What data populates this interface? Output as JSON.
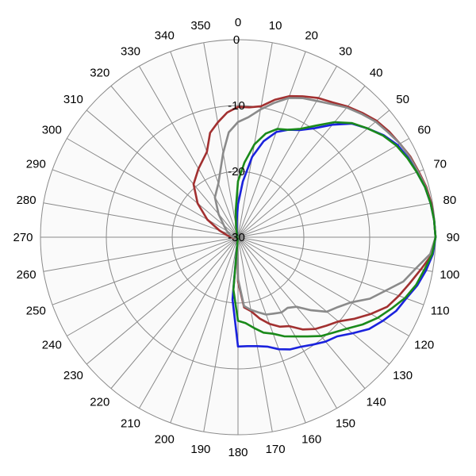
{
  "chart_data": {
    "type": "polar-line",
    "title": "",
    "angle_unit": "degrees",
    "angle_ticks": [
      "0",
      "10",
      "20",
      "30",
      "40",
      "50",
      "60",
      "70",
      "80",
      "90",
      "100",
      "110",
      "120",
      "130",
      "140",
      "150",
      "160",
      "170",
      "180",
      "190",
      "200",
      "210",
      "220",
      "230",
      "240",
      "250",
      "260",
      "270",
      "280",
      "290",
      "300",
      "310",
      "320",
      "330",
      "340",
      "350"
    ],
    "radial_ticks": [
      "0",
      "-10",
      "-20",
      "-30"
    ],
    "radial_range": [
      -30,
      0
    ],
    "grid": true,
    "colors": {
      "background": "#fafafa",
      "grid": "#8a8a8a"
    },
    "series": [
      {
        "color": "#a23030",
        "angles": [
          0,
          5,
          10,
          15,
          20,
          25,
          30,
          35,
          40,
          45,
          50,
          55,
          60,
          65,
          70,
          75,
          80,
          85,
          90,
          95,
          100,
          105,
          110,
          115,
          120,
          125,
          130,
          135,
          140,
          145,
          150,
          155,
          160,
          165,
          170,
          175,
          180,
          185,
          190,
          195,
          200,
          205,
          210,
          220,
          230,
          240,
          250,
          260,
          270,
          280,
          290,
          300,
          310,
          320,
          330,
          340,
          345,
          350,
          355
        ],
        "values": [
          -10.2,
          -10.2,
          -9.8,
          -8.4,
          -7.2,
          -6.4,
          -5.6,
          -5.0,
          -4.1,
          -3.3,
          -2.5,
          -2.0,
          -1.6,
          -1.1,
          -0.8,
          -0.4,
          -0.2,
          -0.1,
          0.0,
          -0.4,
          -1.8,
          -3.0,
          -4.0,
          -5.0,
          -6.7,
          -8.4,
          -10.1,
          -11.0,
          -11.8,
          -12.9,
          -14.4,
          -15.0,
          -16.0,
          -17.2,
          -18.6,
          -19.3,
          -23.3,
          -28.5,
          -29.3,
          -29.5,
          -29.6,
          -29.7,
          -29.8,
          -29.8,
          -29.8,
          -29.8,
          -29.8,
          -29.4,
          -29.0,
          -28.3,
          -27.0,
          -24.6,
          -22.0,
          -19.5,
          -18.0,
          -16.2,
          -13.6,
          -12.3,
          -11.0
        ]
      },
      {
        "color": "#8a8a8a",
        "angles": [
          0,
          5,
          10,
          15,
          20,
          25,
          30,
          35,
          40,
          45,
          50,
          55,
          60,
          65,
          70,
          75,
          80,
          85,
          90,
          95,
          100,
          105,
          110,
          115,
          120,
          125,
          130,
          135,
          140,
          145,
          150,
          155,
          160,
          165,
          170,
          175,
          180,
          185,
          190,
          195,
          200,
          210,
          220,
          230,
          240,
          250,
          260,
          270,
          280,
          290,
          300,
          310,
          320,
          330,
          340,
          345,
          350,
          355
        ],
        "values": [
          -12.5,
          -11.7,
          -10.3,
          -8.9,
          -7.5,
          -6.7,
          -6.1,
          -5.3,
          -4.3,
          -3.5,
          -2.7,
          -2.2,
          -1.6,
          -1.2,
          -0.9,
          -0.5,
          -0.3,
          -0.1,
          0.0,
          -0.7,
          -2.6,
          -4.0,
          -6.2,
          -7.9,
          -10.2,
          -11.5,
          -12.4,
          -14.3,
          -16.2,
          -16.9,
          -16.8,
          -17.2,
          -17.5,
          -18.2,
          -18.8,
          -19.5,
          -23.7,
          -29.2,
          -29.4,
          -29.5,
          -29.6,
          -29.7,
          -29.8,
          -29.8,
          -29.8,
          -29.8,
          -29.6,
          -29.3,
          -29.0,
          -28.6,
          -28.0,
          -27.2,
          -25.4,
          -23.0,
          -21.3,
          -19.6,
          -17.0,
          -14.0
        ]
      },
      {
        "color": "#1a22dd",
        "angles": [
          0,
          5,
          10,
          15,
          20,
          25,
          30,
          35,
          40,
          45,
          50,
          55,
          60,
          65,
          70,
          75,
          80,
          85,
          90,
          95,
          100,
          105,
          110,
          115,
          120,
          125,
          130,
          135,
          140,
          145,
          150,
          155,
          160,
          165,
          170,
          175,
          180,
          185,
          190,
          195,
          200,
          210,
          220,
          230,
          240,
          250,
          260,
          270,
          280,
          290,
          300,
          310,
          320,
          330,
          340,
          345,
          350,
          355
        ],
        "values": [
          -25.0,
          -21.5,
          -17.6,
          -14.9,
          -13.0,
          -12.0,
          -11.2,
          -9.8,
          -7.7,
          -5.6,
          -4.3,
          -3.0,
          -2.0,
          -1.5,
          -1.1,
          -0.6,
          -0.3,
          -0.1,
          0.0,
          -0.3,
          -1.0,
          -1.8,
          -2.8,
          -3.5,
          -4.6,
          -5.7,
          -7.3,
          -8.7,
          -9.3,
          -10.1,
          -10.8,
          -11.2,
          -11.9,
          -12.8,
          -13.2,
          -13.4,
          -13.4,
          -20.5,
          -29.6,
          -29.7,
          -29.8,
          -29.8,
          -29.8,
          -29.8,
          -29.8,
          -29.8,
          -29.8,
          -29.8,
          -29.8,
          -29.8,
          -29.8,
          -29.8,
          -29.8,
          -29.8,
          -29.7,
          -29.5,
          -28.8,
          -27.6
        ]
      },
      {
        "color": "#1a8a1a",
        "angles": [
          0,
          5,
          10,
          15,
          20,
          25,
          30,
          35,
          40,
          45,
          50,
          55,
          60,
          65,
          70,
          75,
          80,
          85,
          90,
          95,
          100,
          105,
          110,
          115,
          120,
          125,
          130,
          135,
          140,
          145,
          150,
          155,
          160,
          165,
          170,
          175,
          180,
          185,
          190,
          195,
          200,
          210,
          220,
          230,
          240,
          250,
          260,
          270,
          280,
          290,
          300,
          310,
          320,
          330,
          340,
          345,
          350,
          355
        ],
        "values": [
          -21.5,
          -18.6,
          -15.7,
          -13.7,
          -12.5,
          -12.0,
          -11.0,
          -9.3,
          -7.2,
          -5.5,
          -4.3,
          -3.1,
          -2.2,
          -1.6,
          -1.1,
          -0.6,
          -0.3,
          -0.1,
          0.0,
          -0.4,
          -1.3,
          -2.0,
          -3.0,
          -4.3,
          -5.5,
          -6.9,
          -8.4,
          -9.5,
          -10.4,
          -11.6,
          -12.6,
          -13.4,
          -14.4,
          -15.0,
          -16.0,
          -16.9,
          -17.3,
          -22.0,
          -29.7,
          -29.8,
          -29.8,
          -29.8,
          -29.8,
          -29.8,
          -29.8,
          -29.8,
          -29.8,
          -29.8,
          -29.8,
          -29.8,
          -29.8,
          -29.8,
          -29.8,
          -29.8,
          -29.6,
          -29.2,
          -28.3,
          -26.0
        ]
      }
    ]
  }
}
